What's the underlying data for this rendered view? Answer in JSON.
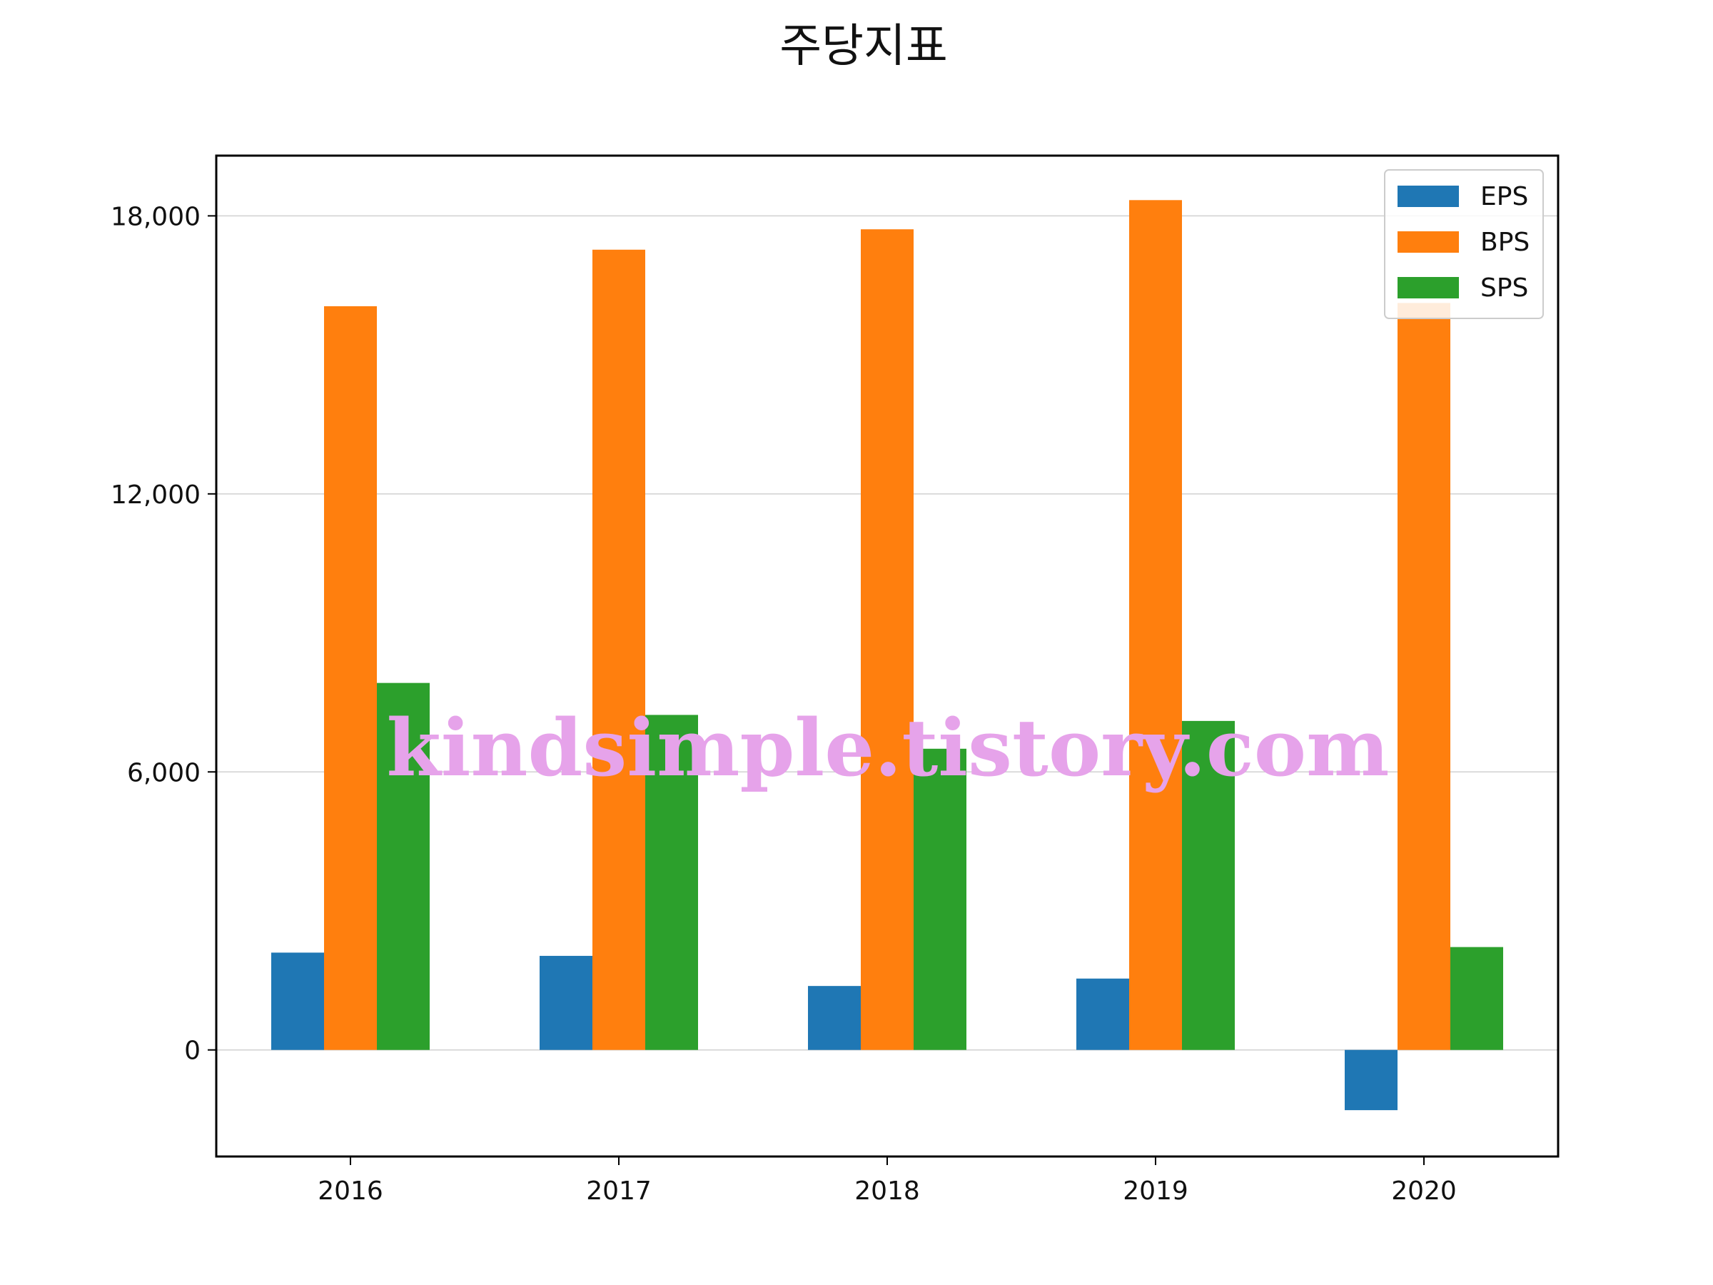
{
  "chart_data": {
    "type": "bar",
    "title": "주당지표",
    "xlabel": "",
    "ylabel": "",
    "categories": [
      "2016",
      "2017",
      "2018",
      "2019",
      "2020"
    ],
    "series": [
      {
        "name": "EPS",
        "color": "#1f77b4",
        "values": [
          2100,
          2030,
          1380,
          1540,
          -1300
        ]
      },
      {
        "name": "BPS",
        "color": "#ff7f0e",
        "values": [
          16050,
          17270,
          17710,
          18340,
          16120
        ]
      },
      {
        "name": "SPS",
        "color": "#2ca02c",
        "values": [
          7920,
          7230,
          6500,
          7100,
          2220
        ]
      }
    ],
    "ylim": [
      -2300,
      19300
    ],
    "yticks": [
      0,
      6000,
      12000,
      18000
    ],
    "ytick_labels": [
      "0",
      "6,000",
      "12,000",
      "18,000"
    ],
    "grid": "horizontal",
    "legend_position": "top-right"
  },
  "watermark": "kindsimple.tistory.com"
}
